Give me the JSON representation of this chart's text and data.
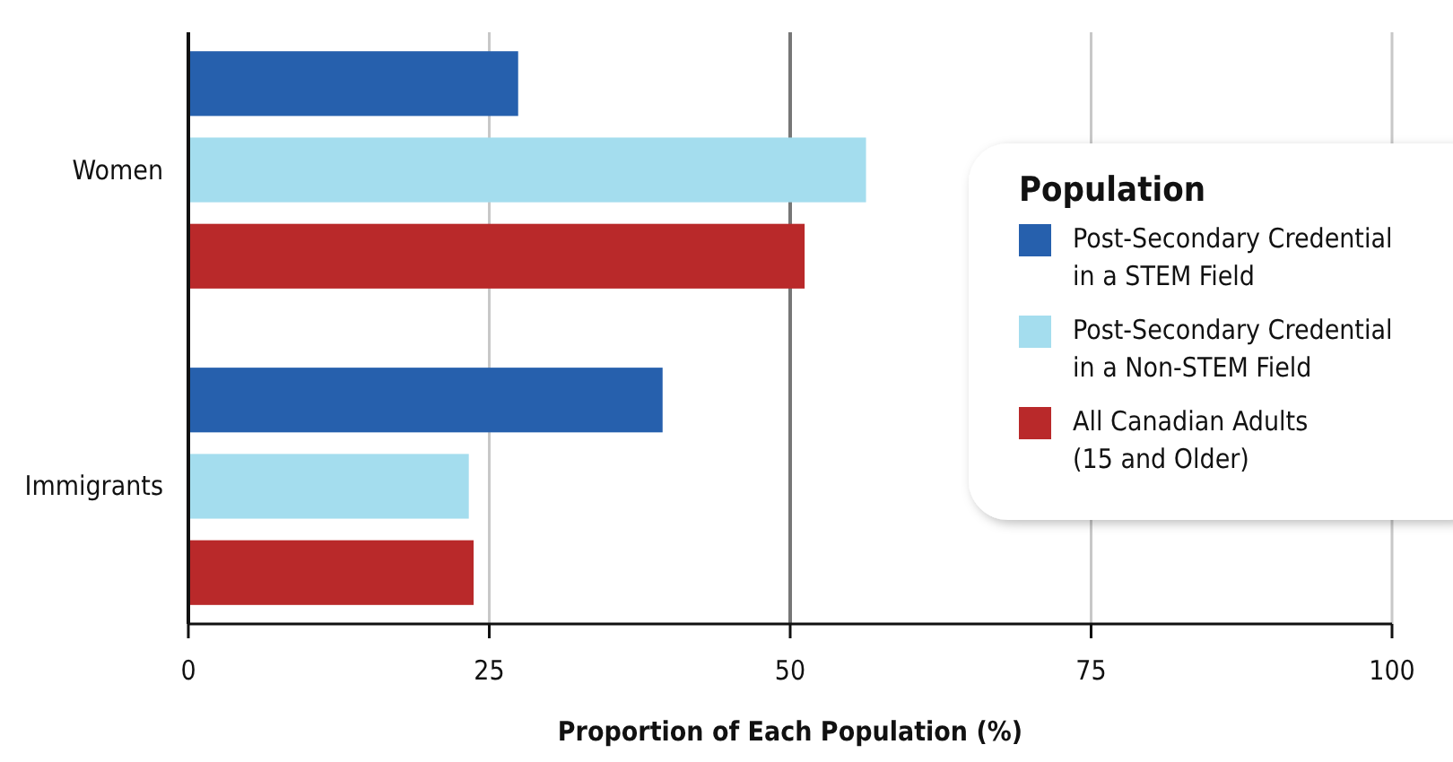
{
  "chart_data": {
    "type": "bar",
    "orientation": "horizontal",
    "categories": [
      "Women",
      "Immigrants"
    ],
    "series": [
      {
        "name": "Post-Secondary Credential in a STEM Field",
        "color": "#2660ad",
        "values": [
          27.4,
          39.4
        ]
      },
      {
        "name": "Post-Secondary Credential in a Non-STEM Field",
        "color": "#a4ddee",
        "values": [
          56.3,
          23.3
        ]
      },
      {
        "name": "All Canadian Adults (15 and Older)",
        "color": "#b9292a",
        "values": [
          51.2,
          23.7
        ]
      }
    ],
    "xlabel": "Proportion of Each Population (%)",
    "legend_title": "Population",
    "legend": "right",
    "xlim": [
      0,
      100
    ],
    "xticks": [
      0,
      25,
      50,
      75,
      100
    ],
    "grid": "x",
    "ref_lines": [
      {
        "axis": "x",
        "value": 50,
        "color": "#777777"
      }
    ]
  }
}
